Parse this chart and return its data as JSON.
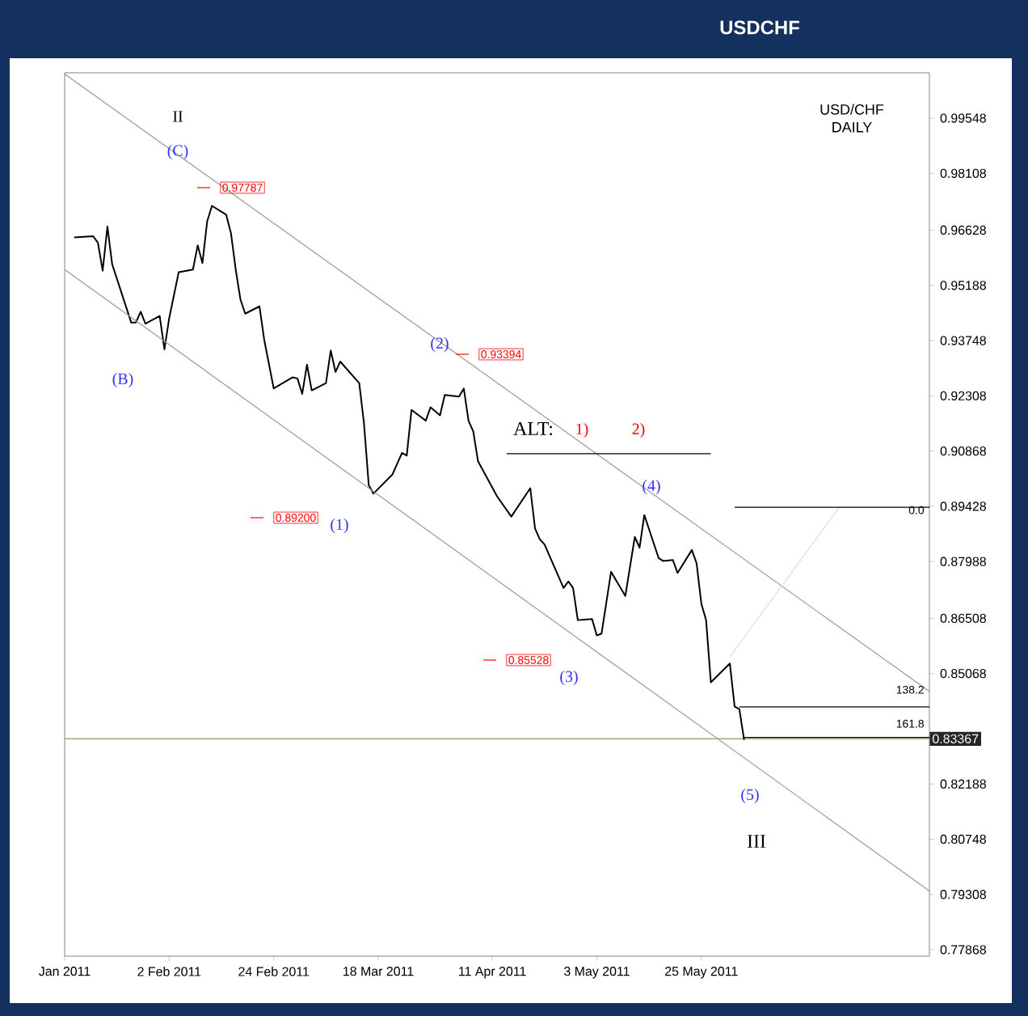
{
  "chart_data": {
    "type": "line",
    "title": "USDCHF",
    "subtitle": "USD/CHF DAILY",
    "xlim": [
      "2011-01-11",
      "2011-07-12"
    ],
    "ylim": [
      0.777,
      1.0073
    ],
    "xticks": [
      {
        "value": "2011-01-11",
        "label": "Jan 2011"
      },
      {
        "value": "2011-02-02",
        "label": "2 Feb 2011"
      },
      {
        "value": "2011-02-24",
        "label": "24 Feb 2011"
      },
      {
        "value": "2011-03-18",
        "label": "18 Mar 2011"
      },
      {
        "value": "2011-04-11",
        "label": "11 Apr 2011"
      },
      {
        "value": "2011-05-03",
        "label": "3 May 2011"
      },
      {
        "value": "2011-05-25",
        "label": "25 May 2011"
      }
    ],
    "yticks": [
      0.99548,
      0.98108,
      0.96628,
      0.95188,
      0.93748,
      0.92308,
      0.90868,
      0.89428,
      0.87988,
      0.86508,
      0.85068,
      0.82188,
      0.80748,
      0.79308,
      0.77868
    ],
    "series": [
      {
        "color": "#000000",
        "x": [
          "2011-01-13",
          "2011-01-17",
          "2011-01-18",
          "2011-01-19",
          "2011-01-20",
          "2011-01-21",
          "2011-01-25",
          "2011-01-26",
          "2011-01-27",
          "2011-01-28",
          "2011-01-31",
          "2011-02-01",
          "2011-02-02",
          "2011-02-04",
          "2011-02-07",
          "2011-02-08",
          "2011-02-09",
          "2011-02-10",
          "2011-02-11",
          "2011-02-14",
          "2011-02-15",
          "2011-02-16",
          "2011-02-17",
          "2011-02-18",
          "2011-02-21",
          "2011-02-22",
          "2011-02-24",
          "2011-02-28",
          "2011-03-01",
          "2011-03-02",
          "2011-03-03",
          "2011-03-04",
          "2011-03-07",
          "2011-03-08",
          "2011-03-09",
          "2011-03-10",
          "2011-03-14",
          "2011-03-15",
          "2011-03-16",
          "2011-03-17",
          "2011-03-21",
          "2011-03-23",
          "2011-03-24",
          "2011-03-25",
          "2011-03-28",
          "2011-03-29",
          "2011-03-31",
          "2011-04-01",
          "2011-04-04",
          "2011-04-05",
          "2011-04-06",
          "2011-04-07",
          "2011-04-08",
          "2011-04-12",
          "2011-04-15",
          "2011-04-19",
          "2011-04-20",
          "2011-04-21",
          "2011-04-22",
          "2011-04-26",
          "2011-04-27",
          "2011-04-28",
          "2011-04-29",
          "2011-05-02",
          "2011-05-03",
          "2011-05-04",
          "2011-05-06",
          "2011-05-09",
          "2011-05-11",
          "2011-05-12",
          "2011-05-13",
          "2011-05-16",
          "2011-05-17",
          "2011-05-19",
          "2011-05-20",
          "2011-05-23",
          "2011-05-24",
          "2011-05-25",
          "2011-05-26",
          "2011-05-27",
          "2011-05-31",
          "2011-06-01",
          "2011-06-02",
          "2011-06-03"
        ],
        "values": [
          0.9644,
          0.9647,
          0.963,
          0.9557,
          0.9672,
          0.9574,
          0.9422,
          0.9422,
          0.945,
          0.9419,
          0.9439,
          0.9352,
          0.9433,
          0.9553,
          0.956,
          0.9623,
          0.9577,
          0.9686,
          0.9726,
          0.9703,
          0.9655,
          0.956,
          0.9482,
          0.9445,
          0.9464,
          0.9377,
          0.925,
          0.9279,
          0.9276,
          0.9236,
          0.9312,
          0.9245,
          0.9264,
          0.9349,
          0.9293,
          0.932,
          0.9264,
          0.9159,
          0.8998,
          0.8976,
          0.9026,
          0.9082,
          0.9075,
          0.9194,
          0.9166,
          0.9201,
          0.918,
          0.9233,
          0.9229,
          0.925,
          0.9166,
          0.9138,
          0.906,
          0.8969,
          0.8916,
          0.899,
          0.8885,
          0.8857,
          0.8843,
          0.873,
          0.8747,
          0.873,
          0.8646,
          0.8649,
          0.8606,
          0.8611,
          0.8772,
          0.8709,
          0.8863,
          0.8835,
          0.892,
          0.8808,
          0.88,
          0.8803,
          0.8769,
          0.8829,
          0.8794,
          0.8689,
          0.8646,
          0.8484,
          0.8533,
          0.8421,
          0.8414,
          0.8334
        ]
      },
      {
        "color": "#999999",
        "x": [
          "2011-01-11",
          "2011-07-12"
        ],
        "values": [
          1.007,
          0.846
        ]
      },
      {
        "color": "#999999",
        "x": [
          "2011-01-11",
          "2011-07-12"
        ],
        "values": [
          0.956,
          0.794
        ]
      },
      {
        "color": "#dddddd",
        "x": [
          "2011-05-31",
          "2011-06-23"
        ],
        "values": [
          0.855,
          0.894
        ]
      },
      {
        "color": "#000000",
        "x": [
          "2011-06-01",
          "2011-07-12"
        ],
        "values": [
          0.894,
          0.894
        ]
      },
      {
        "color": "#000000",
        "x": [
          "2011-06-02",
          "2011-07-12"
        ],
        "values": [
          0.842,
          0.842
        ]
      },
      {
        "color": "#000000",
        "x": [
          "2011-06-03",
          "2011-07-12"
        ],
        "values": [
          0.834,
          0.834
        ]
      },
      {
        "color": "#000000",
        "x": [
          "2011-04-14",
          "2011-05-27"
        ],
        "values": [
          0.908,
          0.908
        ]
      }
    ],
    "ref_lines": [
      {
        "axis": "y",
        "value": 0.83367,
        "label": "0.83367",
        "color": "#a8a870"
      }
    ],
    "annotations": [
      "II",
      "(C)",
      "0.97787",
      "(B)",
      "(2)",
      "0.93394",
      "0.89200",
      "(1)",
      "ALT:",
      "1)",
      "2)",
      "(4)",
      "0.85528",
      "(3)",
      "(5)",
      "III",
      "0.0",
      "138.2",
      "161.8"
    ]
  }
}
